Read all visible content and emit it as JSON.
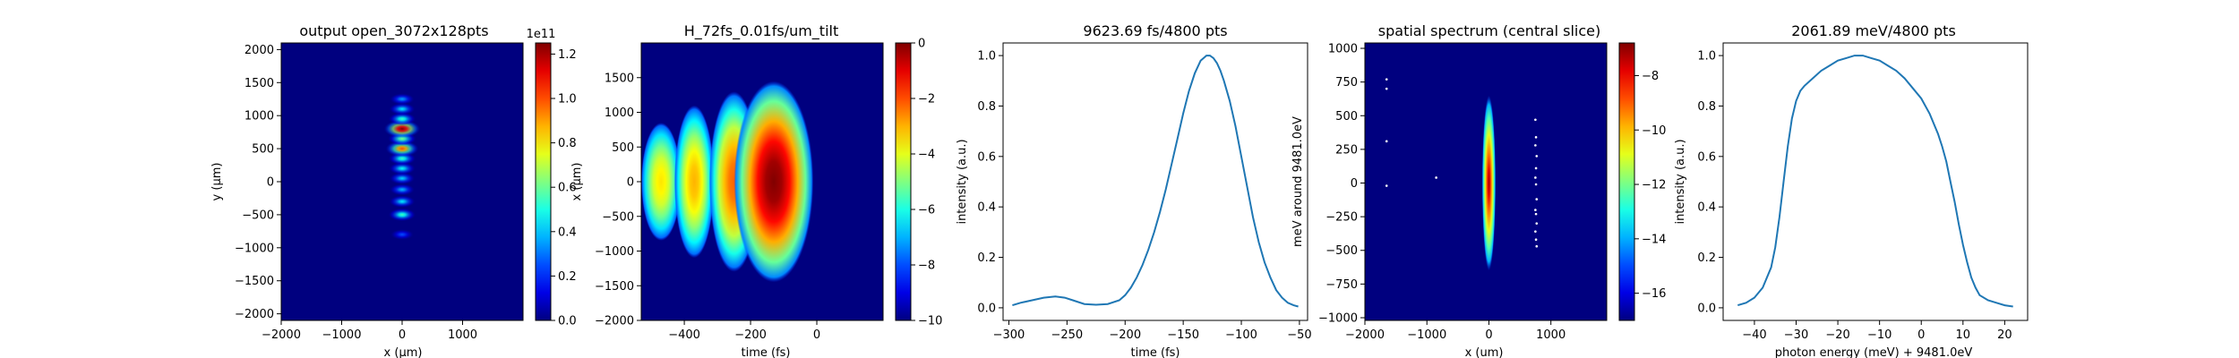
{
  "colors": {
    "line": "#1f77b4",
    "map_background": "#00007f",
    "axes": "#000000"
  },
  "colorscale": "jet",
  "chart_data": [
    {
      "type": "heatmap",
      "title": "output open_3072x128pts",
      "xlabel": "x (μm)",
      "ylabel": "y (μm)",
      "xlim": [
        -2000,
        2000
      ],
      "ylim": [
        2100,
        -2100
      ],
      "xticks": [
        "−2000",
        "−1000",
        "0",
        "1000"
      ],
      "xtick_values": [
        -2000,
        -1000,
        0,
        1000
      ],
      "yticks": [
        "−2000",
        "−1500",
        "−1000",
        "−500",
        "0",
        "500",
        "1000",
        "1500",
        "2000"
      ],
      "ytick_values": [
        -2000,
        -1500,
        -1000,
        -500,
        0,
        500,
        1000,
        1500,
        2000
      ],
      "colorbar": {
        "range": [
          0,
          1.25
        ],
        "ticks": [
          "0.0",
          "0.2",
          "0.4",
          "0.6",
          "0.8",
          "1.0",
          "1.2"
        ],
        "tick_values": [
          0,
          0.2,
          0.4,
          0.6,
          0.8,
          1.0,
          1.2
        ],
        "offset_label": "1e11"
      },
      "fringes": {
        "x_center": 0,
        "x_halfwidth": 300,
        "y_positions": [
          -800,
          -500,
          -300,
          -120,
          50,
          200,
          350,
          500,
          650,
          800,
          950,
          1100,
          1250
        ],
        "intensities": [
          0.25,
          0.55,
          0.45,
          0.38,
          0.42,
          0.48,
          0.55,
          1.0,
          0.62,
          1.25,
          0.55,
          0.45,
          0.35
        ]
      }
    },
    {
      "type": "heatmap",
      "title": "H_72fs_0.01fs/um_tilt",
      "xlabel": "time (fs)",
      "ylabel": "x (μm)",
      "xlim": [
        -530,
        200
      ],
      "ylim": [
        2000,
        -2000
      ],
      "xticks": [
        "−400",
        "−200",
        "0"
      ],
      "xtick_values": [
        -400,
        -200,
        0
      ],
      "yticks": [
        "−2000",
        "−1500",
        "−1000",
        "−500",
        "0",
        "500",
        "1000",
        "1500"
      ],
      "ytick_values": [
        -2000,
        -1500,
        -1000,
        -500,
        0,
        500,
        1000,
        1500
      ],
      "colorbar": {
        "range": [
          -10,
          0
        ],
        "ticks": [
          "0",
          "−2",
          "−4",
          "−6",
          "−8",
          "−10"
        ],
        "tick_values": [
          0,
          -2,
          -4,
          -6,
          -8,
          -10
        ]
      },
      "lobes": {
        "t_centers": [
          -470,
          -370,
          -250,
          -130
        ],
        "t_halfwidths": [
          60,
          60,
          75,
          120
        ],
        "x_halfwidths": [
          850,
          1100,
          1300,
          1450
        ],
        "levels": [
          -3.5,
          -3.0,
          -2.2,
          0
        ]
      }
    },
    {
      "type": "line",
      "title": "9623.69 fs/4800 pts",
      "xlabel": "time (fs)",
      "ylabel": "intensity (a.u.)",
      "xlim": [
        -305,
        -43
      ],
      "ylim": [
        -0.05,
        1.05
      ],
      "xticks": [
        "−300",
        "−250",
        "−200",
        "−150",
        "−100",
        "−50"
      ],
      "xtick_values": [
        -300,
        -250,
        -200,
        -150,
        -100,
        -50
      ],
      "yticks": [
        "0.0",
        "0.2",
        "0.4",
        "0.6",
        "0.8",
        "1.0"
      ],
      "ytick_values": [
        0,
        0.2,
        0.4,
        0.6,
        0.8,
        1.0
      ],
      "series": [
        {
          "x": [
            -297,
            -290,
            -280,
            -270,
            -260,
            -252,
            -245,
            -235,
            -225,
            -215,
            -205,
            -200,
            -195,
            -190,
            -185,
            -180,
            -175,
            -170,
            -165,
            -160,
            -155,
            -150,
            -145,
            -140,
            -135,
            -130,
            -127,
            -124,
            -121,
            -118,
            -115,
            -110,
            -105,
            -100,
            -95,
            -90,
            -85,
            -80,
            -75,
            -70,
            -65,
            -60,
            -55,
            -51
          ],
          "values": [
            0.01,
            0.02,
            0.03,
            0.04,
            0.045,
            0.04,
            0.03,
            0.015,
            0.012,
            0.015,
            0.03,
            0.05,
            0.08,
            0.12,
            0.17,
            0.23,
            0.3,
            0.38,
            0.47,
            0.57,
            0.67,
            0.77,
            0.86,
            0.93,
            0.98,
            1.0,
            1.0,
            0.99,
            0.97,
            0.94,
            0.9,
            0.82,
            0.72,
            0.6,
            0.48,
            0.36,
            0.26,
            0.18,
            0.12,
            0.07,
            0.04,
            0.02,
            0.01,
            0.005
          ]
        }
      ]
    },
    {
      "type": "heatmap",
      "title": "spatial spectrum (central slice)",
      "xlabel": "x (um)",
      "ylabel": "meV around 9481.0eV",
      "xlim": [
        -2000,
        1900
      ],
      "ylim": [
        1040,
        -1020
      ],
      "xticks": [
        "−2000",
        "−1000",
        "0",
        "1000"
      ],
      "xtick_values": [
        -2000,
        -1000,
        0,
        1000
      ],
      "yticks": [
        "1000",
        "750",
        "500",
        "250",
        "0",
        "−250",
        "−500",
        "−750",
        "−1000"
      ],
      "ytick_values": [
        1000,
        750,
        500,
        250,
        0,
        -250,
        -500,
        -750,
        -1000
      ],
      "colorbar": {
        "range": [
          -17,
          -6.8
        ],
        "ticks": [
          "−8",
          "−10",
          "−12",
          "−14",
          "−16"
        ],
        "tick_values": [
          -8,
          -10,
          -12,
          -14,
          -16
        ]
      },
      "streak": {
        "x_center": 0,
        "x_halfwidth": 110,
        "e_halfwidth": 650
      },
      "speckles": [
        [
          -1650,
          770
        ],
        [
          -1650,
          700
        ],
        [
          -1650,
          310
        ],
        [
          -1650,
          -20
        ],
        [
          -850,
          40
        ],
        [
          750,
          470
        ],
        [
          760,
          340
        ],
        [
          750,
          280
        ],
        [
          770,
          200
        ],
        [
          760,
          110
        ],
        [
          750,
          40
        ],
        [
          760,
          -10
        ],
        [
          770,
          -120
        ],
        [
          750,
          -200
        ],
        [
          760,
          -230
        ],
        [
          770,
          -300
        ],
        [
          750,
          -360
        ],
        [
          760,
          -420
        ],
        [
          770,
          -470
        ]
      ]
    },
    {
      "type": "line",
      "title": "2061.89 meV/4800 pts",
      "xlabel": "photon energy (meV) + 9481.0eV",
      "ylabel": "intensity (a.u.)",
      "xlim": [
        -47.5,
        25.5
      ],
      "ylim": [
        -0.05,
        1.05
      ],
      "xticks": [
        "−40",
        "−30",
        "−20",
        "−10",
        "0",
        "10",
        "20"
      ],
      "xtick_values": [
        -40,
        -30,
        -20,
        -10,
        0,
        10,
        20
      ],
      "yticks": [
        "0.0",
        "0.2",
        "0.4",
        "0.6",
        "0.8",
        "1.0"
      ],
      "ytick_values": [
        0,
        0.2,
        0.4,
        0.6,
        0.8,
        1.0
      ],
      "series": [
        {
          "x": [
            -44,
            -42,
            -40,
            -38,
            -36,
            -35,
            -34,
            -33,
            -32,
            -31,
            -30,
            -29,
            -28,
            -26,
            -24,
            -22,
            -20,
            -18,
            -16,
            -14,
            -12,
            -10,
            -8,
            -6,
            -4,
            -2,
            0,
            2,
            4,
            5,
            6,
            7,
            8,
            9,
            10,
            11,
            12,
            13,
            14,
            16,
            18,
            20,
            22
          ],
          "values": [
            0.01,
            0.02,
            0.04,
            0.08,
            0.16,
            0.24,
            0.36,
            0.5,
            0.64,
            0.75,
            0.82,
            0.86,
            0.88,
            0.91,
            0.94,
            0.96,
            0.98,
            0.99,
            1.0,
            1.0,
            0.99,
            0.98,
            0.96,
            0.94,
            0.91,
            0.87,
            0.83,
            0.77,
            0.69,
            0.64,
            0.58,
            0.5,
            0.42,
            0.33,
            0.25,
            0.18,
            0.12,
            0.08,
            0.05,
            0.03,
            0.02,
            0.01,
            0.005
          ]
        }
      ]
    }
  ]
}
